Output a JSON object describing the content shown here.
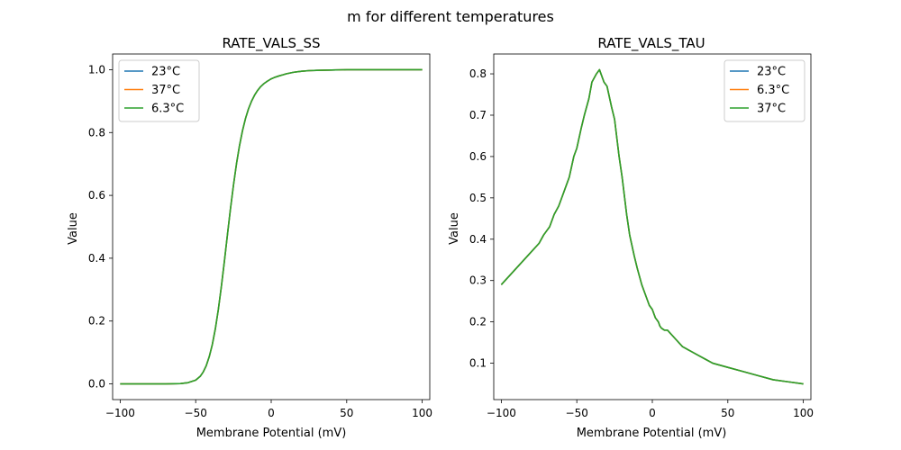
{
  "figure": {
    "suptitle": "m for different temperatures"
  },
  "chart_data": [
    {
      "type": "line",
      "title": "RATE_VALS_SS",
      "xlabel": "Membrane Potential (mV)",
      "ylabel": "Value",
      "xlim": [
        -105,
        105
      ],
      "ylim": [
        -0.05,
        1.05
      ],
      "xticks": [
        -100,
        -50,
        0,
        50,
        100
      ],
      "xtick_labels": [
        "−100",
        "−50",
        "0",
        "50",
        "100"
      ],
      "yticks": [
        0.0,
        0.2,
        0.4,
        0.6,
        0.8,
        1.0
      ],
      "ytick_labels": [
        "0.0",
        "0.2",
        "0.4",
        "0.6",
        "0.8",
        "1.0"
      ],
      "grid": false,
      "legend": "upper-left",
      "x": [
        -100,
        -90,
        -80,
        -70,
        -60,
        -55,
        -50,
        -47,
        -45,
        -43,
        -41,
        -39,
        -37,
        -35,
        -33,
        -31,
        -29,
        -27,
        -25,
        -23,
        -21,
        -19,
        -17,
        -15,
        -13,
        -11,
        -9,
        -7,
        -5,
        -3,
        -1,
        0,
        2,
        5,
        8,
        10,
        15,
        20,
        25,
        30,
        40,
        50,
        60,
        70,
        80,
        90,
        100
      ],
      "series": [
        {
          "name": "23°C",
          "color": "#1f77b4",
          "y": [
            0,
            0,
            0,
            0,
            0.001,
            0.004,
            0.012,
            0.024,
            0.038,
            0.058,
            0.087,
            0.125,
            0.175,
            0.237,
            0.31,
            0.39,
            0.474,
            0.556,
            0.632,
            0.7,
            0.758,
            0.806,
            0.845,
            0.876,
            0.9,
            0.919,
            0.934,
            0.946,
            0.955,
            0.962,
            0.968,
            0.971,
            0.975,
            0.98,
            0.984,
            0.987,
            0.992,
            0.995,
            0.997,
            0.998,
            0.999,
            1,
            1,
            1,
            1,
            1,
            1
          ]
        },
        {
          "name": "37°C",
          "color": "#ff7f0e",
          "y": [
            0,
            0,
            0,
            0,
            0.001,
            0.004,
            0.012,
            0.024,
            0.038,
            0.058,
            0.087,
            0.125,
            0.175,
            0.237,
            0.31,
            0.39,
            0.474,
            0.556,
            0.632,
            0.7,
            0.758,
            0.806,
            0.845,
            0.876,
            0.9,
            0.919,
            0.934,
            0.946,
            0.955,
            0.962,
            0.968,
            0.971,
            0.975,
            0.98,
            0.984,
            0.987,
            0.992,
            0.995,
            0.997,
            0.998,
            0.999,
            1,
            1,
            1,
            1,
            1,
            1
          ]
        },
        {
          "name": "6.3°C",
          "color": "#2ca02c",
          "y": [
            0,
            0,
            0,
            0,
            0.001,
            0.004,
            0.012,
            0.024,
            0.038,
            0.058,
            0.087,
            0.125,
            0.175,
            0.237,
            0.31,
            0.39,
            0.474,
            0.556,
            0.632,
            0.7,
            0.758,
            0.806,
            0.845,
            0.876,
            0.9,
            0.919,
            0.934,
            0.946,
            0.955,
            0.962,
            0.968,
            0.971,
            0.975,
            0.98,
            0.984,
            0.987,
            0.992,
            0.995,
            0.997,
            0.998,
            0.999,
            1,
            1,
            1,
            1,
            1,
            1
          ]
        }
      ]
    },
    {
      "type": "line",
      "title": "RATE_VALS_TAU",
      "xlabel": "Membrane Potential (mV)",
      "ylabel": "Value",
      "xlim": [
        -105,
        105
      ],
      "ylim": [
        0.012,
        0.848
      ],
      "xticks": [
        -100,
        -50,
        0,
        50,
        100
      ],
      "xtick_labels": [
        "−100",
        "−50",
        "0",
        "50",
        "100"
      ],
      "yticks": [
        0.1,
        0.2,
        0.3,
        0.4,
        0.5,
        0.6,
        0.7,
        0.8
      ],
      "ytick_labels": [
        "0.1",
        "0.2",
        "0.3",
        "0.4",
        "0.5",
        "0.6",
        "0.7",
        "0.8"
      ],
      "grid": false,
      "legend": "upper-right",
      "x": [
        -100,
        -90,
        -80,
        -75,
        -72,
        -70,
        -68,
        -65,
        -62,
        -60,
        -57,
        -55,
        -52,
        -50,
        -47,
        -45,
        -42,
        -40,
        -37,
        -35,
        -32,
        -30,
        -27,
        -25,
        -22,
        -20,
        -17,
        -15,
        -12,
        -10,
        -7,
        -5,
        -2,
        0,
        2,
        4,
        5,
        6,
        8,
        10,
        15,
        20,
        25,
        30,
        35,
        40,
        50,
        60,
        70,
        80,
        90,
        100
      ],
      "series": [
        {
          "name": "23°C",
          "color": "#1f77b4",
          "y": [
            0.29,
            0.33,
            0.37,
            0.39,
            0.41,
            0.42,
            0.43,
            0.46,
            0.48,
            0.5,
            0.53,
            0.55,
            0.6,
            0.62,
            0.67,
            0.7,
            0.74,
            0.78,
            0.8,
            0.81,
            0.78,
            0.77,
            0.72,
            0.69,
            0.6,
            0.55,
            0.46,
            0.41,
            0.36,
            0.33,
            0.29,
            0.27,
            0.24,
            0.23,
            0.21,
            0.2,
            0.19,
            0.185,
            0.18,
            0.18,
            0.16,
            0.14,
            0.13,
            0.12,
            0.11,
            0.1,
            0.09,
            0.08,
            0.07,
            0.06,
            0.055,
            0.05
          ]
        },
        {
          "name": "6.3°C",
          "color": "#ff7f0e",
          "y": [
            0.29,
            0.33,
            0.37,
            0.39,
            0.41,
            0.42,
            0.43,
            0.46,
            0.48,
            0.5,
            0.53,
            0.55,
            0.6,
            0.62,
            0.67,
            0.7,
            0.74,
            0.78,
            0.8,
            0.81,
            0.78,
            0.77,
            0.72,
            0.69,
            0.6,
            0.55,
            0.46,
            0.41,
            0.36,
            0.33,
            0.29,
            0.27,
            0.24,
            0.23,
            0.21,
            0.2,
            0.19,
            0.185,
            0.18,
            0.18,
            0.16,
            0.14,
            0.13,
            0.12,
            0.11,
            0.1,
            0.09,
            0.08,
            0.07,
            0.06,
            0.055,
            0.05
          ]
        },
        {
          "name": "37°C",
          "color": "#2ca02c",
          "y": [
            0.29,
            0.33,
            0.37,
            0.39,
            0.41,
            0.42,
            0.43,
            0.46,
            0.48,
            0.5,
            0.53,
            0.55,
            0.6,
            0.62,
            0.67,
            0.7,
            0.74,
            0.78,
            0.8,
            0.81,
            0.78,
            0.77,
            0.72,
            0.69,
            0.6,
            0.55,
            0.46,
            0.41,
            0.36,
            0.33,
            0.29,
            0.27,
            0.24,
            0.23,
            0.21,
            0.2,
            0.19,
            0.185,
            0.18,
            0.18,
            0.16,
            0.14,
            0.13,
            0.12,
            0.11,
            0.1,
            0.09,
            0.08,
            0.07,
            0.06,
            0.055,
            0.05
          ]
        }
      ]
    }
  ]
}
